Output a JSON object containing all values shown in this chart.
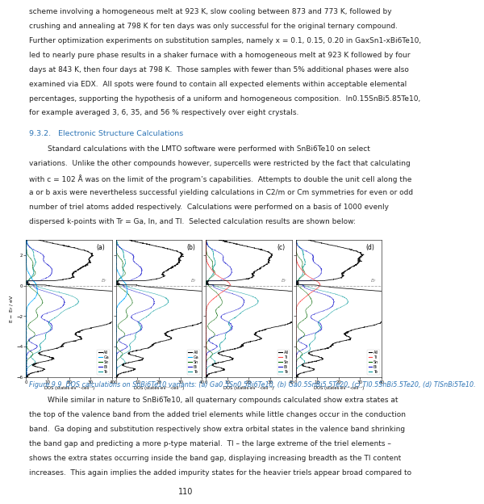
{
  "page_width": 4.95,
  "page_height": 6.4,
  "bg_color": "#ffffff",
  "top_text_lines": [
    "scheme involving a homogeneous melt at 923 K, slow cooling between 873 and 773 K, followed by",
    "crushing and annealing at 798 K for ten days was only successful for the original ternary compound.",
    "Further optimization experiments on substitution samples, namely x = 0.1, 0.15, 0.20 in GaxSn1-xBi6Te10,",
    "led to nearly pure phase results in a shaker furnace with a homogeneous melt at 923 K followed by four",
    "days at 843 K, then four days at 798 K.  Those samples with fewer than 5% additional phases were also",
    "examined via EDX.  All spots were found to contain all expected elements within acceptable elemental",
    "percentages, supporting the hypothesis of a uniform and homogeneous composition.  In0.15SnBi5.85Te10,",
    "for example averaged 3, 6, 35, and 56 % respectively over eight crystals."
  ],
  "section_heading": "9.3.2.   Electronic Structure Calculations",
  "body_text_lines": [
    "        Standard calculations with the LMTO software were performed with SnBi6Te10 on select",
    "variations.  Unlike the other compounds however, supercells were restricted by the fact that calculating",
    "with c = 102 Å was on the limit of the program’s capabilities.  Attempts to double the unit cell along the",
    "a or b axis were nevertheless successful yielding calculations in C2/m or Cm symmetries for even or odd",
    "number of triel atoms added respectively.  Calculations were performed on a basis of 1000 evenly",
    "dispersed k-points with Tr = Ga, In, and Tl.  Selected calculation results are shown below:"
  ],
  "figure_caption": "Figure 9.9  DOS calculations on SnBi6Te10 variants: (a) Ga0.5Sn0.5Bi6Te10, (b) Ga0.5SnBi5.5Te20, (c) Tl0.5SnBi5.5Te20, (d) TlSnBi5Te10.",
  "bottom_text_lines": [
    "        While similar in nature to SnBi6Te10, all quaternary compounds calculated show extra states at",
    "the top of the valence band from the added triel elements while little changes occur in the conduction",
    "band.  Ga doping and substitution respectively show extra orbital states in the valence band shrinking",
    "the band gap and predicting a more p-type material.  Tl – the large extreme of the triel elements –",
    "shows the extra states occurring inside the band gap, displaying increasing breadth as the Tl content",
    "increases.  This again implies the added impurity states for the heavier triels appear broad compared to"
  ],
  "page_number": "110",
  "subplot_labels": [
    "(a)",
    "(b)",
    "(c)",
    "(d)"
  ],
  "ylim": [
    -6,
    3
  ],
  "xlim": [
    0,
    40
  ]
}
